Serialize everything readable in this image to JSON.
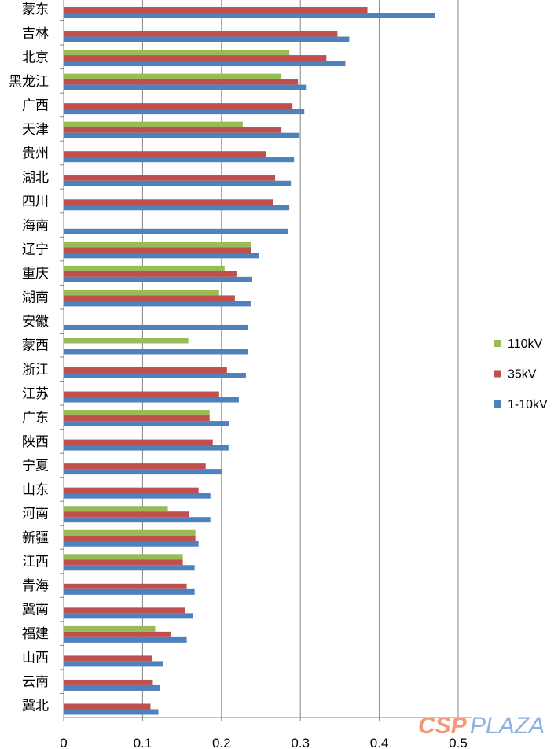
{
  "chart_data": {
    "type": "bar",
    "orientation": "horizontal",
    "title": "",
    "xlabel": "",
    "ylabel": "",
    "xlim": [
      0,
      0.5
    ],
    "xticks": [
      "0",
      "0.1",
      "0.2",
      "0.3",
      "0.4",
      "0.5"
    ],
    "grid": true,
    "legend_position": "right",
    "categories": [
      "蒙东",
      "吉林",
      "北京",
      "黑龙江",
      "广西",
      "天津",
      "贵州",
      "湖北",
      "四川",
      "海南",
      "辽宁",
      "重庆",
      "湖南",
      "安徽",
      "蒙西",
      "浙江",
      "江苏",
      "广东",
      "陕西",
      "宁夏",
      "山东",
      "河南",
      "新疆",
      "江西",
      "青海",
      "冀南",
      "福建",
      "山西",
      "云南",
      "冀北"
    ],
    "series": [
      {
        "name": "110kV",
        "color": "#9bbb59",
        "values": [
          null,
          null,
          0.286,
          0.276,
          null,
          0.227,
          null,
          null,
          null,
          null,
          0.238,
          0.204,
          0.197,
          null,
          0.158,
          null,
          null,
          0.185,
          null,
          null,
          null,
          0.132,
          0.167,
          0.151,
          null,
          null,
          0.116,
          null,
          null,
          null
        ]
      },
      {
        "name": "35kV",
        "color": "#c0504d",
        "values": [
          0.385,
          0.347,
          0.333,
          0.297,
          0.29,
          0.276,
          0.256,
          0.268,
          0.265,
          null,
          0.238,
          0.219,
          0.217,
          null,
          null,
          0.207,
          0.197,
          0.185,
          0.189,
          0.18,
          0.171,
          0.159,
          0.167,
          0.151,
          0.156,
          0.154,
          0.136,
          0.112,
          0.113,
          0.11
        ]
      },
      {
        "name": "1-10kV",
        "color": "#4f81bd",
        "values": [
          0.471,
          0.362,
          0.357,
          0.307,
          0.305,
          0.299,
          0.292,
          0.288,
          0.286,
          0.284,
          0.248,
          0.239,
          0.237,
          0.234,
          0.234,
          0.231,
          0.222,
          0.21,
          0.209,
          0.2,
          0.186,
          0.186,
          0.171,
          0.166,
          0.166,
          0.164,
          0.156,
          0.126,
          0.122,
          0.12
        ]
      }
    ]
  },
  "watermark": {
    "part1": "CSP",
    "part2": "PLAZA"
  }
}
